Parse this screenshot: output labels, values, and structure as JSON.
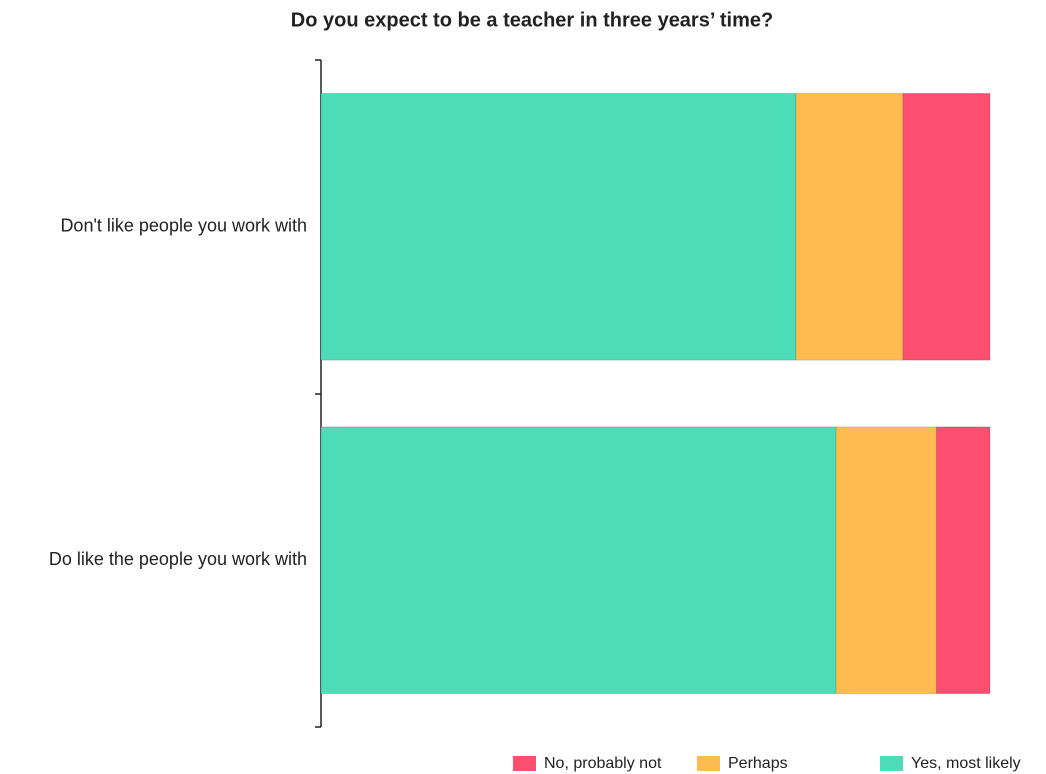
{
  "chart_data": {
    "type": "stacked_bar_horizontal",
    "title": "Do you expect to be a teacher in three years’ time?",
    "categories": [
      "Don't like people you work with",
      "Do like the people you work with"
    ],
    "series": [
      {
        "name": "No, probably not",
        "color": "#fc4f6f",
        "values": [
          13,
          8
        ]
      },
      {
        "name": "Perhaps",
        "color": "#ffbb4f",
        "values": [
          16,
          15
        ]
      },
      {
        "name": "Yes, most likely",
        "color": "#4cdcb8",
        "values": [
          71,
          77
        ]
      }
    ],
    "xlim": [
      0,
      100
    ],
    "legend": "bottom"
  }
}
